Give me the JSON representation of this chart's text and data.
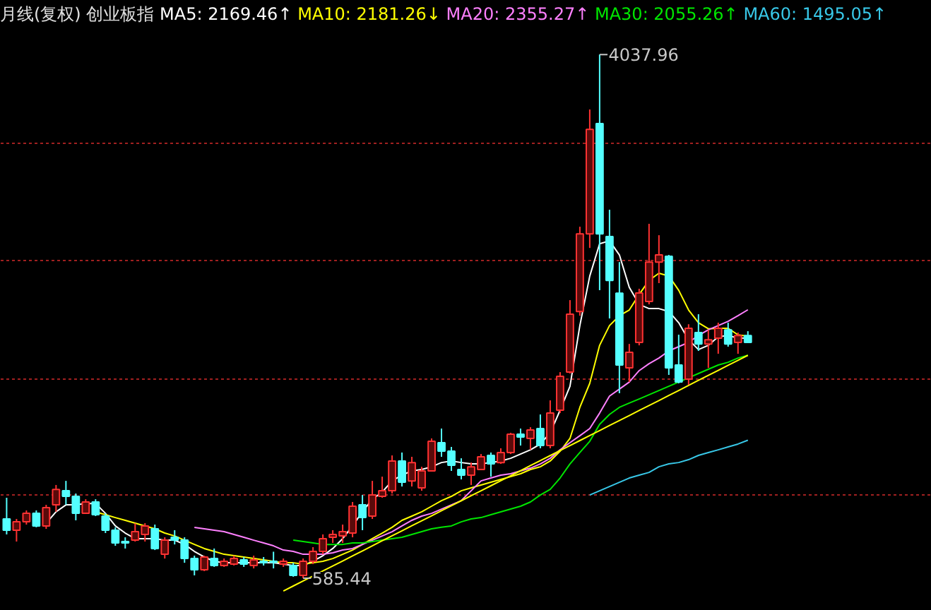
{
  "chart_data": {
    "type": "candlestick",
    "title": "月线(复权)  创业板指",
    "categories": [
      null,
      null,
      null,
      null,
      null,
      null,
      null,
      null,
      null,
      null,
      null,
      null,
      null,
      null,
      null,
      null,
      null,
      null,
      null,
      null,
      null,
      null,
      null,
      null,
      null,
      null,
      null,
      null,
      null,
      null,
      null,
      null,
      null,
      null,
      null,
      null,
      null,
      null,
      null,
      null,
      null,
      null,
      null,
      null,
      null,
      null,
      null,
      null,
      null,
      null,
      null,
      null,
      null,
      null,
      null,
      null,
      null,
      null,
      null,
      null,
      null,
      null,
      null,
      null,
      null,
      null,
      null,
      null,
      null,
      null,
      null,
      null,
      null,
      null,
      null,
      null
    ],
    "ohlc": [
      [
        976,
        1116,
        874,
        902
      ],
      [
        902,
        976,
        827,
        957
      ],
      [
        957,
        1032,
        939,
        1013
      ],
      [
        1013,
        1032,
        921,
        930
      ],
      [
        930,
        1069,
        911,
        1051
      ],
      [
        1069,
        1200,
        1023,
        1171
      ],
      [
        1162,
        1227,
        1069,
        1125
      ],
      [
        1125,
        1144,
        967,
        1013
      ],
      [
        1013,
        1106,
        1013,
        1088
      ],
      [
        1088,
        1106,
        995,
        1004
      ],
      [
        995,
        1013,
        883,
        902
      ],
      [
        902,
        921,
        799,
        818
      ],
      [
        827,
        855,
        781,
        818
      ],
      [
        836,
        948,
        827,
        892
      ],
      [
        874,
        948,
        827,
        930
      ],
      [
        911,
        939,
        771,
        781
      ],
      [
        743,
        855,
        715,
        836
      ],
      [
        855,
        902,
        808,
        836
      ],
      [
        836,
        855,
        687,
        715
      ],
      [
        715,
        734,
        604,
        641
      ],
      [
        641,
        734,
        632,
        725
      ],
      [
        715,
        781,
        660,
        669
      ],
      [
        669,
        715,
        660,
        697
      ],
      [
        678,
        734,
        669,
        715
      ],
      [
        706,
        725,
        660,
        678
      ],
      [
        669,
        734,
        650,
        706
      ],
      [
        697,
        725,
        669,
        687
      ],
      [
        697,
        760,
        650,
        690
      ],
      [
        678,
        715,
        660,
        697
      ],
      [
        669,
        687,
        595,
        604
      ],
      [
        604,
        715,
        585.44,
        697
      ],
      [
        697,
        790,
        678,
        762
      ],
      [
        762,
        874,
        743,
        846
      ],
      [
        855,
        902,
        818,
        874
      ],
      [
        865,
        939,
        818,
        892
      ],
      [
        883,
        1088,
        855,
        1060
      ],
      [
        1069,
        1134,
        902,
        985
      ],
      [
        995,
        1227,
        976,
        1134
      ],
      [
        1125,
        1255,
        1116,
        1162
      ],
      [
        1162,
        1395,
        1144,
        1358
      ],
      [
        1358,
        1414,
        1190,
        1218
      ],
      [
        1227,
        1386,
        1190,
        1348
      ],
      [
        1181,
        1320,
        1162,
        1293
      ],
      [
        1293,
        1507,
        1293,
        1488
      ],
      [
        1479,
        1572,
        1386,
        1423
      ],
      [
        1423,
        1451,
        1293,
        1330
      ],
      [
        1302,
        1376,
        1237,
        1265
      ],
      [
        1265,
        1348,
        1200,
        1320
      ],
      [
        1302,
        1404,
        1302,
        1386
      ],
      [
        1395,
        1414,
        1255,
        1339
      ],
      [
        1348,
        1442,
        1339,
        1414
      ],
      [
        1414,
        1544,
        1404,
        1535
      ],
      [
        1535,
        1572,
        1460,
        1516
      ],
      [
        1507,
        1581,
        1432,
        1563
      ],
      [
        1572,
        1665,
        1442,
        1460
      ],
      [
        1460,
        1758,
        1442,
        1674
      ],
      [
        1693,
        1944,
        1674,
        1916
      ],
      [
        1944,
        2419,
        1935,
        2326
      ],
      [
        2344,
        2903,
        2316,
        2856
      ],
      [
        2856,
        3676,
        2763,
        3545
      ],
      [
        3583,
        4037.96,
        2484,
        2856
      ],
      [
        2838,
        3015,
        2298,
        2549
      ],
      [
        2465,
        2670,
        1805,
        1991
      ],
      [
        1972,
        2130,
        1879,
        2075
      ],
      [
        2140,
        2494,
        2121,
        2466
      ],
      [
        2410,
        2922,
        2391,
        2670
      ],
      [
        2670,
        2847,
        2531,
        2717
      ],
      [
        2708,
        2717,
        1926,
        1972
      ],
      [
        1991,
        2191,
        1870,
        1879
      ],
      [
        1898,
        2260,
        1860,
        2233
      ],
      [
        2205,
        2326,
        2084,
        2130
      ],
      [
        2130,
        2223,
        1972,
        2158
      ],
      [
        2168,
        2270,
        2065,
        2233
      ],
      [
        2223,
        2270,
        2112,
        2130
      ],
      [
        2140,
        2205,
        2065,
        2186
      ],
      [
        2186,
        2214,
        2140,
        2140
      ]
    ],
    "series": [
      {
        "type": "line",
        "name": "MA5: 2169.46↑",
        "color": "#ffffff",
        "values": [
          null,
          null,
          null,
          null,
          948,
          1023,
          1069,
          1069,
          1078,
          1078,
          1013,
          930,
          883,
          846,
          846,
          846,
          836,
          836,
          808,
          762,
          725,
          697,
          687,
          687,
          687,
          687,
          687,
          687,
          678,
          669,
          669,
          697,
          734,
          781,
          846,
          930,
          1023,
          1106,
          1153,
          1227,
          1265,
          1293,
          1302,
          1320,
          1348,
          1358,
          1348,
          1339,
          1339,
          1348,
          1358,
          1376,
          1404,
          1432,
          1470,
          1544,
          1693,
          1851,
          2251,
          2577,
          2791,
          2810,
          2717,
          2503,
          2391,
          2363,
          2363,
          2344,
          2270,
          2158,
          2093,
          2121,
          2177,
          2186,
          2168,
          2169.46
        ]
      },
      {
        "type": "line",
        "name": "MA10: 2181.26↓",
        "color": "#ffff00",
        "values": [
          null,
          null,
          null,
          null,
          null,
          null,
          null,
          null,
          null,
          1023,
          1004,
          985,
          967,
          948,
          930,
          911,
          883,
          864,
          836,
          808,
          781,
          762,
          743,
          734,
          725,
          715,
          706,
          697,
          687,
          687,
          678,
          687,
          697,
          715,
          743,
          771,
          808,
          846,
          883,
          921,
          967,
          995,
          1023,
          1060,
          1097,
          1125,
          1162,
          1181,
          1200,
          1218,
          1237,
          1255,
          1274,
          1302,
          1320,
          1358,
          1423,
          1507,
          1712,
          1870,
          2121,
          2251,
          2316,
          2354,
          2456,
          2549,
          2596,
          2578,
          2484,
          2354,
          2270,
          2230,
          2233,
          2233,
          2190,
          2181.26
        ]
      },
      {
        "type": "line",
        "name": "MA20: 2355.27↑",
        "color": "#ff80ff",
        "values": [
          null,
          null,
          null,
          null,
          null,
          null,
          null,
          null,
          null,
          null,
          null,
          null,
          null,
          null,
          null,
          null,
          null,
          null,
          null,
          920,
          911,
          902,
          892,
          874,
          855,
          836,
          818,
          799,
          771,
          762,
          743,
          743,
          743,
          753,
          771,
          781,
          808,
          836,
          864,
          892,
          930,
          967,
          995,
          1013,
          1041,
          1069,
          1097,
          1162,
          1227,
          1246,
          1265,
          1274,
          1293,
          1311,
          1339,
          1376,
          1432,
          1479,
          1525,
          1572,
          1674,
          1786,
          1832,
          1879,
          1954,
          2000,
          2037,
          2084,
          2112,
          2140,
          2186,
          2223,
          2251,
          2279,
          2316,
          2355.27
        ]
      },
      {
        "type": "line",
        "name": "MA30: 2055.26↑",
        "color": "#00e600",
        "values": [
          null,
          null,
          null,
          null,
          null,
          null,
          null,
          null,
          null,
          null,
          null,
          null,
          null,
          null,
          null,
          null,
          null,
          null,
          null,
          null,
          null,
          null,
          null,
          null,
          null,
          null,
          null,
          null,
          null,
          836,
          827,
          818,
          808,
          808,
          808,
          818,
          818,
          827,
          836,
          846,
          855,
          874,
          892,
          911,
          921,
          930,
          957,
          976,
          985,
          1004,
          1023,
          1041,
          1060,
          1088,
          1134,
          1171,
          1246,
          1339,
          1414,
          1488,
          1600,
          1665,
          1712,
          1740,
          1767,
          1795,
          1823,
          1851,
          1879,
          1907,
          1935,
          1963,
          1991,
          2009,
          2037,
          2055.26
        ]
      },
      {
        "type": "line",
        "name": "MA60: 1495.05↑",
        "color": "#38c8e8",
        "values": [
          null,
          null,
          null,
          null,
          null,
          null,
          null,
          null,
          null,
          null,
          null,
          null,
          null,
          null,
          null,
          null,
          null,
          null,
          null,
          null,
          null,
          null,
          null,
          null,
          null,
          null,
          null,
          null,
          null,
          null,
          null,
          null,
          null,
          null,
          null,
          null,
          null,
          null,
          null,
          null,
          null,
          null,
          null,
          null,
          null,
          null,
          null,
          null,
          null,
          null,
          null,
          null,
          null,
          null,
          null,
          null,
          null,
          null,
          null,
          1134,
          1162,
          1190,
          1218,
          1246,
          1265,
          1283,
          1320,
          1339,
          1348,
          1367,
          1395,
          1414,
          1432,
          1451,
          1470,
          1495.05
        ]
      },
      {
        "type": "line",
        "color": "#ffff00",
        "values": [
          null,
          null,
          null,
          null,
          null,
          null,
          null,
          null,
          null,
          null,
          null,
          null,
          null,
          null,
          null,
          null,
          null,
          null,
          null,
          null,
          null,
          null,
          null,
          null,
          null,
          null,
          null,
          null,
          501,
          534,
          567,
          600,
          633,
          666,
          699,
          732,
          765,
          799,
          832,
          865,
          898,
          931,
          964,
          997,
          1030,
          1063,
          1096,
          1129,
          1162,
          1195,
          1228,
          1261,
          1294,
          1328,
          1361,
          1394,
          1427,
          1460,
          1493,
          1526,
          1559,
          1592,
          1625,
          1658,
          1691,
          1724,
          1757,
          1790,
          1823,
          1857,
          1890,
          1923,
          1956,
          1989,
          2022,
          2055
        ]
      }
    ],
    "annotations": [
      "4037.96",
      "585.44"
    ],
    "ylim": [
      371,
      4207
    ],
    "yticks": [
      {
        "value": 1134,
        "label": null
      },
      {
        "value": 1898,
        "label": null
      },
      {
        "value": 2680,
        "label": null
      },
      {
        "value": 3452,
        "label": null
      }
    ],
    "grid": "y",
    "tick_labels": false
  }
}
